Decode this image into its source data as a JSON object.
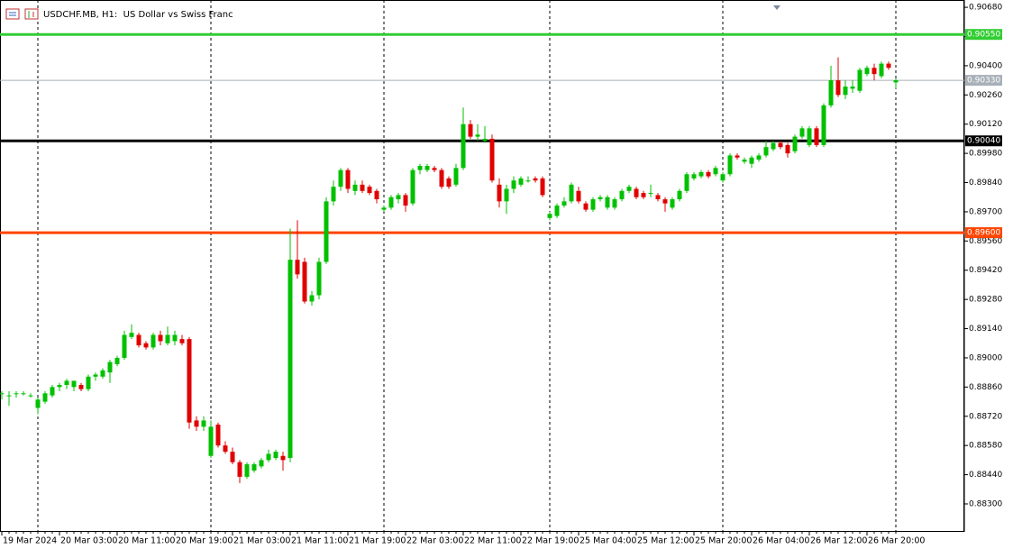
{
  "chart_data": {
    "type": "candlestick",
    "title": "USDCHF.MB, H1:  US Dollar vs Swiss Franc",
    "up_color": "#00c000",
    "down_color": "#e00000",
    "categories": [
      "19 Mar 2024",
      null,
      null,
      null,
      null,
      null,
      null,
      null,
      "20 Mar 03:00",
      null,
      null,
      null,
      null,
      null,
      null,
      null,
      "20 Mar 11:00",
      null,
      null,
      null,
      null,
      null,
      null,
      null,
      "20 Mar 19:00",
      null,
      null,
      null,
      null,
      null,
      null,
      null,
      "21 Mar 03:00",
      null,
      null,
      null,
      null,
      null,
      null,
      null,
      "21 Mar 11:00",
      null,
      null,
      null,
      null,
      null,
      null,
      null,
      "21 Mar 19:00",
      null,
      null,
      null,
      null,
      null,
      null,
      null,
      "22 Mar 03:00",
      null,
      null,
      null,
      null,
      null,
      null,
      null,
      "22 Mar 11:00",
      null,
      null,
      null,
      null,
      null,
      null,
      null,
      "22 Mar 19:00",
      null,
      null,
      null,
      null,
      null,
      null,
      null,
      "25 Mar 04:00",
      null,
      null,
      null,
      null,
      null,
      null,
      null,
      "25 Mar 12:00",
      null,
      null,
      null,
      null,
      null,
      null,
      null,
      "25 Mar 20:00",
      null,
      null,
      null,
      null,
      null,
      null,
      null,
      "26 Mar 04:00",
      null,
      null,
      null,
      null,
      null,
      null,
      null,
      "26 Mar 12:00",
      null,
      null,
      null,
      null,
      null,
      null,
      null,
      "26 Mar 20:00",
      null,
      null,
      null,
      null
    ],
    "open": [
      0.8883,
      0.8882,
      0.8883,
      0.8883,
      0.8882,
      0.8876,
      0.8879,
      0.8882,
      0.8886,
      0.8887,
      0.8886,
      0.8887,
      0.8885,
      0.8891,
      0.8891,
      0.8893,
      0.8897,
      0.89,
      0.891,
      0.8911,
      0.8907,
      0.8905,
      0.8911,
      0.8907,
      0.8908,
      0.8909,
      0.8909,
      0.887,
      0.8867,
      0.8853,
      0.8868,
      0.8858,
      0.8855,
      0.885,
      0.8843,
      0.8846,
      0.8848,
      0.8851,
      0.8852,
      0.8853,
      0.8852,
      0.8947,
      0.8946,
      0.8927,
      0.893,
      0.8946,
      0.8975,
      0.8982,
      0.899,
      0.898,
      0.8983,
      0.8982,
      0.898,
      0.8971,
      0.8972,
      0.8976,
      0.8978,
      0.8974,
      0.899,
      0.899,
      0.8991,
      0.899,
      0.8986,
      0.8983,
      0.8991,
      0.9012,
      0.9006,
      0.9004,
      0.9005,
      0.8983,
      0.8975,
      0.8981,
      0.8983,
      0.8985,
      0.8986,
      0.8986,
      0.8967,
      0.8968,
      0.8973,
      0.8975,
      0.898,
      0.8974,
      0.8971,
      0.8976,
      0.8972,
      0.8972,
      0.8976,
      0.898,
      0.8981,
      0.8979,
      0.8979,
      0.8978,
      0.8976,
      0.8972,
      0.8976,
      0.898,
      0.8986,
      0.8987,
      0.8989,
      0.8988,
      0.8985,
      0.8988,
      0.8997,
      0.8994,
      0.8993,
      0.8995,
      0.8997,
      0.9,
      0.9003,
      0.9002,
      0.8999,
      0.9006,
      0.9002,
      0.901,
      0.9002,
      0.9021,
      0.9033,
      0.9026,
      0.9029,
      0.9028,
      0.9036,
      0.9039,
      0.9035,
      0.9041,
      0.9032
    ],
    "high": [
      0.8884,
      0.8884,
      0.8884,
      0.8884,
      0.8883,
      0.8881,
      0.8884,
      0.8887,
      0.8888,
      0.889,
      0.8889,
      0.8888,
      0.8892,
      0.8893,
      0.8895,
      0.8899,
      0.8901,
      0.8913,
      0.8916,
      0.8912,
      0.8908,
      0.8912,
      0.8913,
      0.8915,
      0.8913,
      0.8911,
      0.891,
      0.8872,
      0.8872,
      0.887,
      0.8869,
      0.886,
      0.8857,
      0.8851,
      0.885,
      0.885,
      0.8852,
      0.8856,
      0.8856,
      0.8855,
      0.8962,
      0.8966,
      0.8948,
      0.8932,
      0.8948,
      0.8977,
      0.8985,
      0.8991,
      0.8991,
      0.8985,
      0.8985,
      0.8983,
      0.8981,
      0.8973,
      0.8978,
      0.8979,
      0.8979,
      0.8991,
      0.8993,
      0.8993,
      0.8992,
      0.8991,
      0.8987,
      0.8993,
      0.902,
      0.9014,
      0.9012,
      0.9011,
      0.9007,
      0.8986,
      0.8983,
      0.8987,
      0.8987,
      0.8987,
      0.8987,
      0.8987,
      0.897,
      0.8974,
      0.8977,
      0.8984,
      0.8982,
      0.8975,
      0.8977,
      0.8978,
      0.8978,
      0.8977,
      0.8981,
      0.8983,
      0.8982,
      0.898,
      0.8983,
      0.8979,
      0.8977,
      0.8977,
      0.8981,
      0.8989,
      0.8989,
      0.899,
      0.899,
      0.8992,
      0.8989,
      0.8998,
      0.8998,
      0.8996,
      0.8997,
      0.8998,
      0.9004,
      0.9004,
      0.9004,
      0.9003,
      0.9007,
      0.9011,
      0.9011,
      0.9011,
      0.9022,
      0.904,
      0.9044,
      0.9033,
      0.9033,
      0.9039,
      0.904,
      0.9041,
      0.9042,
      0.9042,
      0.9034
    ],
    "low": [
      0.888,
      0.8877,
      0.8881,
      0.8882,
      0.8881,
      0.8873,
      0.8878,
      0.8881,
      0.8884,
      0.8885,
      0.8884,
      0.8884,
      0.8884,
      0.8889,
      0.889,
      0.8888,
      0.8896,
      0.8899,
      0.8909,
      0.8905,
      0.8904,
      0.8904,
      0.8906,
      0.8906,
      0.8906,
      0.8906,
      0.8866,
      0.8865,
      0.8865,
      0.8852,
      0.8857,
      0.8854,
      0.8849,
      0.884,
      0.8842,
      0.8845,
      0.8847,
      0.885,
      0.8851,
      0.8846,
      0.885,
      0.8938,
      0.8926,
      0.8925,
      0.8928,
      0.8945,
      0.8973,
      0.898,
      0.8979,
      0.8978,
      0.8979,
      0.8978,
      0.8974,
      0.897,
      0.8971,
      0.8974,
      0.897,
      0.8973,
      0.8988,
      0.8989,
      0.8989,
      0.8981,
      0.8981,
      0.8982,
      0.899,
      0.9005,
      0.9004,
      0.9003,
      0.8984,
      0.8972,
      0.8969,
      0.8979,
      0.8982,
      0.8984,
      0.8984,
      0.8977,
      0.8966,
      0.8967,
      0.8972,
      0.8974,
      0.8974,
      0.897,
      0.897,
      0.8975,
      0.8971,
      0.8971,
      0.8975,
      0.8979,
      0.8976,
      0.8976,
      0.8977,
      0.8975,
      0.897,
      0.8971,
      0.8975,
      0.8979,
      0.8985,
      0.8986,
      0.8986,
      0.8987,
      0.8984,
      0.8987,
      0.8995,
      0.8993,
      0.8991,
      0.8994,
      0.8996,
      0.8999,
      0.9,
      0.8996,
      0.8998,
      0.9005,
      0.9001,
      0.9001,
      0.9001,
      0.902,
      0.9025,
      0.9024,
      0.9027,
      0.9027,
      0.9035,
      0.9033,
      0.9034,
      0.9038,
      0.9029
    ],
    "close": [
      0.8883,
      0.8882,
      0.8883,
      0.8883,
      0.8882,
      0.888,
      0.8883,
      0.8886,
      0.8887,
      0.8889,
      0.8889,
      0.8885,
      0.8891,
      0.8892,
      0.8894,
      0.8898,
      0.89,
      0.8911,
      0.8912,
      0.8906,
      0.8905,
      0.8911,
      0.8908,
      0.8911,
      0.8911,
      0.8907,
      0.8869,
      0.8867,
      0.887,
      0.8867,
      0.8858,
      0.8855,
      0.885,
      0.8843,
      0.8849,
      0.8849,
      0.8851,
      0.8854,
      0.8855,
      0.8851,
      0.8947,
      0.894,
      0.8927,
      0.893,
      0.8946,
      0.8975,
      0.8982,
      0.899,
      0.8981,
      0.8983,
      0.898,
      0.8979,
      0.8976,
      0.8972,
      0.8977,
      0.8978,
      0.8973,
      0.899,
      0.8992,
      0.8992,
      0.899,
      0.8982,
      0.8982,
      0.8991,
      0.9012,
      0.9006,
      0.9007,
      0.9005,
      0.8985,
      0.8975,
      0.8981,
      0.8985,
      0.8986,
      0.8985,
      0.8985,
      0.8978,
      0.8969,
      0.8973,
      0.8975,
      0.8983,
      0.8975,
      0.8971,
      0.8976,
      0.8977,
      0.8977,
      0.8976,
      0.898,
      0.8982,
      0.8977,
      0.8977,
      0.8979,
      0.8976,
      0.8974,
      0.8976,
      0.898,
      0.8988,
      0.8988,
      0.8989,
      0.8987,
      0.8991,
      0.8988,
      0.8997,
      0.8996,
      0.8995,
      0.8996,
      0.8997,
      0.9001,
      0.9003,
      0.9001,
      0.8998,
      0.9006,
      0.901,
      0.901,
      0.9002,
      0.9021,
      0.9033,
      0.9026,
      0.903,
      0.903,
      0.9038,
      0.9039,
      0.9036,
      0.9041,
      0.9039,
      0.9033
    ],
    "ylim": [
      0.88166,
      0.90715
    ],
    "yticks": [
      {
        "value": 0.9068,
        "label": "0.90680"
      },
      {
        "value": 0.9054,
        "label": "0.90540"
      },
      {
        "value": 0.904,
        "label": "0.90400"
      },
      {
        "value": 0.9026,
        "label": "0.90260"
      },
      {
        "value": 0.9012,
        "label": "0.90120"
      },
      {
        "value": 0.8998,
        "label": "0.89980"
      },
      {
        "value": 0.8984,
        "label": "0.89840"
      },
      {
        "value": 0.897,
        "label": "0.89700"
      },
      {
        "value": 0.8956,
        "label": "0.89560"
      },
      {
        "value": 0.8942,
        "label": "0.89420"
      },
      {
        "value": 0.8928,
        "label": "0.89280"
      },
      {
        "value": 0.8914,
        "label": "0.89140"
      },
      {
        "value": 0.89,
        "label": "0.89000"
      },
      {
        "value": 0.8886,
        "label": "0.88860"
      },
      {
        "value": 0.8872,
        "label": "0.88720"
      },
      {
        "value": 0.8858,
        "label": "0.88580"
      },
      {
        "value": 0.8844,
        "label": "0.88440"
      },
      {
        "value": 0.883,
        "label": "0.88300"
      }
    ],
    "hlines": [
      {
        "value": 0.9055,
        "label": "0.90550",
        "color": "#32cd32",
        "width": 3
      },
      {
        "value": 0.9033,
        "label": "0.90330",
        "color": "#a8b0b8",
        "width": 1
      },
      {
        "value": 0.9004,
        "label": "0.90040",
        "color": "#000000",
        "width": 3
      },
      {
        "value": 0.896,
        "label": "0.89600",
        "color": "#ff4500",
        "width": 3
      }
    ]
  }
}
